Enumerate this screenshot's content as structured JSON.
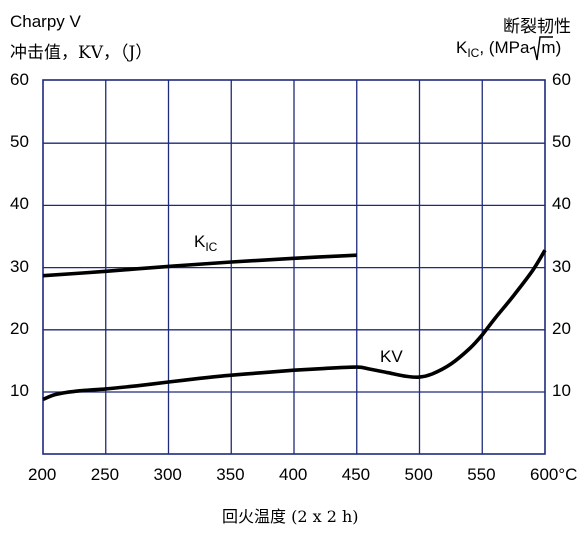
{
  "chart_data": {
    "type": "line",
    "left_axis": {
      "title_line1": "Charpy V",
      "title_line2": "冲击值，KV，（J）",
      "ylim": [
        0,
        60
      ],
      "ticks": [
        "60",
        "50",
        "40",
        "30",
        "20",
        "10"
      ]
    },
    "right_axis": {
      "title_line1": "断裂韧性",
      "symbol_main": "K",
      "symbol_sub": "IC",
      "unit_open": ", (MPa",
      "unit_root": "m",
      "unit_close": ")",
      "ylim": [
        0,
        60
      ],
      "ticks": [
        "60",
        "50",
        "40",
        "30",
        "20",
        "10"
      ]
    },
    "x_axis": {
      "label": "回火温度  (2 x 2 h)",
      "xlim": [
        200,
        600
      ],
      "ticks": [
        "200",
        "250",
        "300",
        "350",
        "400",
        "450",
        "500",
        "550",
        "600°C"
      ]
    },
    "grid": true,
    "series": [
      {
        "name": "KIC",
        "label_main": "K",
        "label_sub": "IC",
        "color": "#000000",
        "x": [
          200,
          250,
          300,
          350,
          400,
          450
        ],
        "y": [
          28.7,
          29.4,
          30.2,
          30.9,
          31.5,
          32.0
        ]
      },
      {
        "name": "KV",
        "label_main": "KV",
        "color": "#000000",
        "x": [
          200,
          210,
          225,
          250,
          275,
          300,
          325,
          350,
          375,
          400,
          425,
          450,
          460,
          475,
          490,
          500,
          510,
          525,
          540,
          550,
          560,
          575,
          590,
          600
        ],
        "y": [
          8.8,
          9.6,
          10.1,
          10.5,
          11.0,
          11.6,
          12.2,
          12.7,
          13.1,
          13.5,
          13.8,
          14.0,
          13.7,
          13.1,
          12.5,
          12.4,
          12.9,
          14.5,
          17.0,
          19.2,
          21.8,
          25.5,
          29.5,
          32.8
        ]
      }
    ]
  }
}
